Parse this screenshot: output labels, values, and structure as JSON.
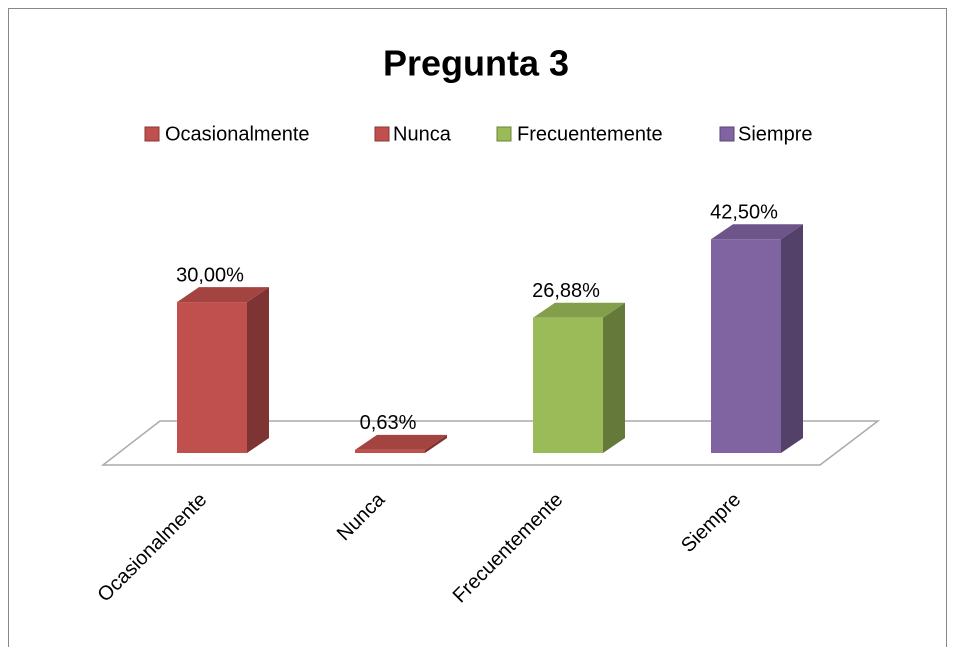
{
  "chart_data": {
    "type": "bar",
    "title": "Pregunta 3",
    "categories": [
      "Ocasionalmente",
      "Nunca",
      "Frecuentemente",
      "Siempre"
    ],
    "values": [
      30,
      0.63,
      26.88,
      42.5
    ],
    "value_labels": [
      "30,00%",
      "0,63%",
      "26,88%",
      "42,50%"
    ],
    "colors": [
      "#c0504d",
      "#c0504d",
      "#9bbb59",
      "#8064a2"
    ],
    "legend": "top"
  }
}
